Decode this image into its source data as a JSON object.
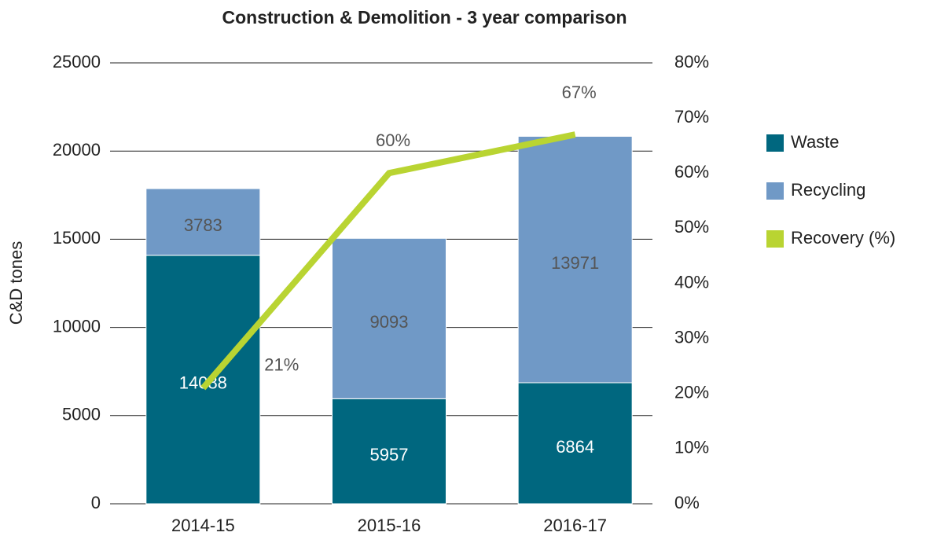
{
  "chart_data": {
    "type": "bar",
    "title": "Construction & Demolition - 3 year comparison",
    "y_label": "C&D tones",
    "categories": [
      "2014-15",
      "2015-16",
      "2016-17"
    ],
    "series": [
      {
        "name": "Waste",
        "color": "#00677f",
        "values": [
          14088,
          5957,
          6864
        ]
      },
      {
        "name": "Recycling",
        "color": "#7099c6",
        "values": [
          3783,
          9093,
          13971
        ]
      },
      {
        "name": "Recovery (%)",
        "type": "line",
        "axis": "y2",
        "color": "#b9d432",
        "values": [
          21,
          60,
          67
        ],
        "value_labels": [
          "21%",
          "60%",
          "67%"
        ]
      }
    ],
    "stacked": true,
    "ylim": [
      0,
      25000
    ],
    "yticks": [
      0,
      5000,
      10000,
      15000,
      20000,
      25000
    ],
    "y2lim": [
      0,
      80
    ],
    "y2ticks": [
      {
        "value": 0,
        "label": "0%"
      },
      {
        "value": 10,
        "label": "10%"
      },
      {
        "value": 20,
        "label": "20%"
      },
      {
        "value": 30,
        "label": "30%"
      },
      {
        "value": 40,
        "label": "40%"
      },
      {
        "value": 50,
        "label": "50%"
      },
      {
        "value": 60,
        "label": "60%"
      },
      {
        "value": 70,
        "label": "70%"
      },
      {
        "value": 80,
        "label": "80%"
      }
    ],
    "grid": true,
    "legend": "right"
  }
}
